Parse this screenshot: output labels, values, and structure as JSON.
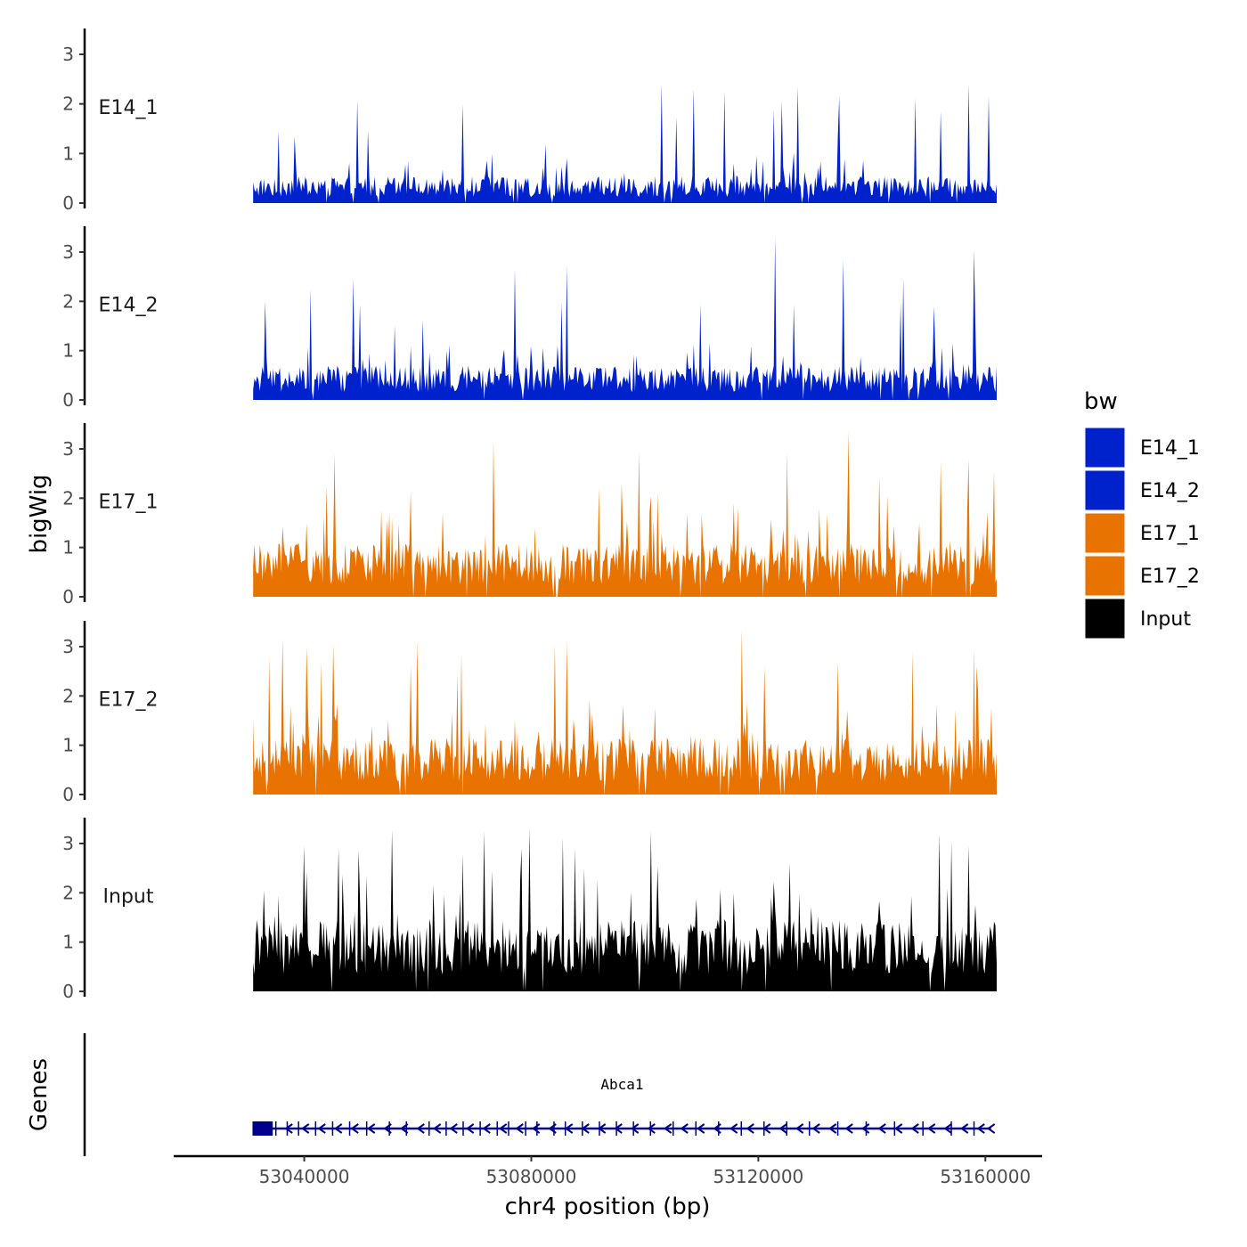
{
  "chart_data": {
    "type": "area",
    "ylabel": "bigWig",
    "xlabel": "chr4 position (bp)",
    "gene_panel_label": "Genes",
    "xlim": [
      53017000,
      53170000
    ],
    "data_range": [
      53031000,
      53162000
    ],
    "x_ticks": [
      53040000,
      53080000,
      53120000,
      53160000
    ],
    "x_tick_labels": [
      "53040000",
      "53080000",
      "53120000",
      "53160000"
    ],
    "ylim": [
      0,
      3.5
    ],
    "y_ticks": [
      0,
      1,
      2,
      3
    ],
    "y_tick_labels": [
      "0",
      "1",
      "2",
      "3"
    ],
    "legend": {
      "title": "bw",
      "position": "right",
      "entries": [
        {
          "label": "E14_1",
          "color": "#0022CC"
        },
        {
          "label": "E14_2",
          "color": "#0022CC"
        },
        {
          "label": "E17_1",
          "color": "#E87300"
        },
        {
          "label": "E17_2",
          "color": "#E87300"
        },
        {
          "label": "Input",
          "color": "#000000"
        }
      ]
    },
    "series": [
      {
        "name": "E14_1",
        "color": "#0022CC",
        "base_level": 0.35,
        "max_value": 2.45,
        "peaks": [
          [
            53103000,
            2.4
          ],
          [
            53108500,
            2.3
          ],
          [
            53114000,
            2.25
          ],
          [
            53157000,
            2.4
          ],
          [
            53160500,
            2.15
          ],
          [
            53068000,
            2.0
          ],
          [
            53127000,
            2.35
          ]
        ]
      },
      {
        "name": "E14_2",
        "color": "#0022CC",
        "base_level": 0.45,
        "max_value": 3.3,
        "peaks": [
          [
            53123000,
            3.3
          ],
          [
            53158000,
            3.05
          ],
          [
            53135000,
            2.85
          ],
          [
            53077000,
            2.65
          ],
          [
            53033000,
            2.0
          ],
          [
            53041000,
            2.25
          ]
        ]
      },
      {
        "name": "E17_1",
        "color": "#E87300",
        "base_level": 0.7,
        "max_value": 3.35,
        "peaks": [
          [
            53136000,
            3.35
          ],
          [
            53125000,
            2.95
          ],
          [
            53099000,
            2.95
          ],
          [
            53157000,
            2.8
          ],
          [
            53161500,
            2.55
          ],
          [
            53044000,
            2.25
          ]
        ]
      },
      {
        "name": "E17_2",
        "color": "#E87300",
        "base_level": 0.75,
        "max_value": 3.35,
        "peaks": [
          [
            53117000,
            3.35
          ],
          [
            53045000,
            3.05
          ],
          [
            53158000,
            2.95
          ],
          [
            53121000,
            2.6
          ],
          [
            53134000,
            2.7
          ],
          [
            53067000,
            2.45
          ]
        ]
      },
      {
        "name": "Input",
        "color": "#000000",
        "base_level": 0.95,
        "max_value": 3.3,
        "peaks": [
          [
            53101000,
            3.25
          ],
          [
            53152000,
            3.2
          ],
          [
            53157000,
            2.95
          ],
          [
            53040000,
            2.95
          ],
          [
            53046000,
            2.9
          ],
          [
            53068000,
            2.8
          ]
        ]
      }
    ],
    "gene": {
      "name": "Abca1",
      "start": 53031000,
      "end": 53161000,
      "strand": "-",
      "color": "#00008B",
      "exons": [
        53031000,
        53033000,
        53035000,
        53037000,
        53039000,
        53042000,
        53045000,
        53048000,
        53051000,
        53055000,
        53058000,
        53062000,
        53065000,
        53068000,
        53071000,
        53074000,
        53076000,
        53079000,
        53081000,
        53084000,
        53086000,
        53089000,
        53092000,
        53095000,
        53098000,
        53101000,
        53105000,
        53109000,
        53113000,
        53117000,
        53121000,
        53125000,
        53129000,
        53134000,
        53139000,
        53144000,
        53149000,
        53154000,
        53158000
      ]
    }
  }
}
